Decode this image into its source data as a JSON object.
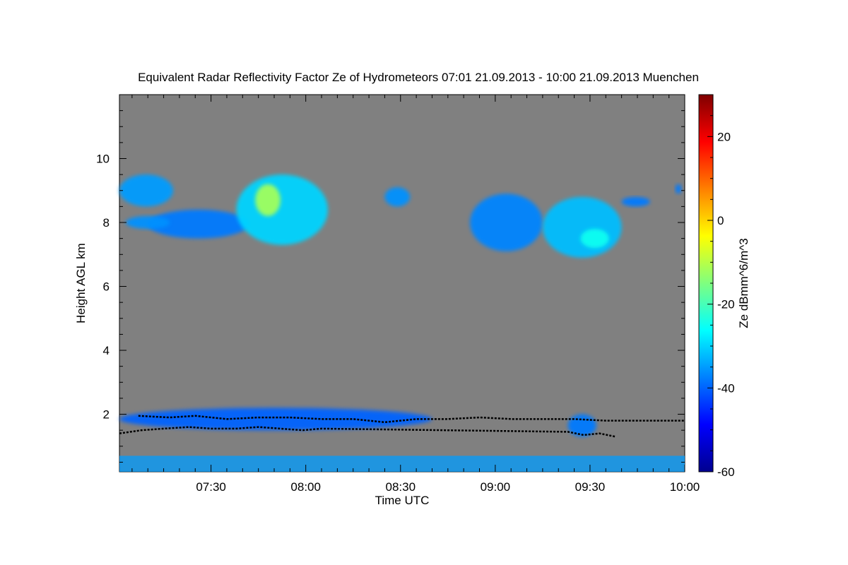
{
  "chart_data": {
    "type": "heatmap",
    "title": "Equivalent Radar Reflectivity Factor Ze of Hydrometeors   07:01 21.09.2013 - 10:00 21.09.2013 Muenchen",
    "xlabel": "Time UTC",
    "ylabel": "Height AGL km",
    "colorbar_label": "Ze dBmm^6/m^3",
    "xlim_minutes_utc": [
      421,
      600
    ],
    "ylim_km": [
      0.2,
      12.0
    ],
    "colorbar_range": [
      -60,
      30
    ],
    "x_ticks": [
      {
        "t": 450,
        "label": "07:30"
      },
      {
        "t": 480,
        "label": "08:00"
      },
      {
        "t": 510,
        "label": "08:30"
      },
      {
        "t": 540,
        "label": "09:00"
      },
      {
        "t": 570,
        "label": "09:30"
      },
      {
        "t": 600,
        "label": "10:00"
      }
    ],
    "y_ticks": [
      {
        "h": 2,
        "label": "2"
      },
      {
        "h": 4,
        "label": "4"
      },
      {
        "h": 6,
        "label": "6"
      },
      {
        "h": 8,
        "label": "8"
      },
      {
        "h": 10,
        "label": "10"
      }
    ],
    "colorbar_ticks": [
      {
        "v": -60,
        "label": "-60"
      },
      {
        "v": -40,
        "label": "-40"
      },
      {
        "v": -20,
        "label": "-20"
      },
      {
        "v": 0,
        "label": "0"
      },
      {
        "v": 20,
        "label": "20"
      }
    ],
    "background_color": "#808080",
    "colormap": "jet",
    "echo_regions": [
      {
        "name": "cirrus-west-upper",
        "t_start": 421,
        "t_end": 438,
        "h_bottom": 8.5,
        "h_top": 9.5,
        "ze": -35
      },
      {
        "name": "cirrus-west-band",
        "t_start": 430,
        "t_end": 462,
        "h_bottom": 7.5,
        "h_top": 8.4,
        "ze": -38
      },
      {
        "name": "cirrus-west-lower",
        "t_start": 423,
        "t_end": 437,
        "h_bottom": 7.8,
        "h_top": 8.2,
        "ze": -36
      },
      {
        "name": "cirrus-central-core",
        "t_start": 458,
        "t_end": 487,
        "h_bottom": 7.3,
        "h_top": 9.5,
        "ze": -30
      },
      {
        "name": "cirrus-central-peak",
        "t_start": 464,
        "t_end": 472,
        "h_bottom": 8.2,
        "h_top": 9.2,
        "ze": -12
      },
      {
        "name": "cirrus-small-1",
        "t_start": 505,
        "t_end": 513,
        "h_bottom": 8.5,
        "h_top": 9.1,
        "ze": -36
      },
      {
        "name": "cirrus-east-west",
        "t_start": 532,
        "t_end": 555,
        "h_bottom": 7.1,
        "h_top": 8.9,
        "ze": -37
      },
      {
        "name": "cirrus-east-east",
        "t_start": 555,
        "t_end": 580,
        "h_bottom": 6.9,
        "h_top": 8.8,
        "ze": -32
      },
      {
        "name": "cirrus-east-core",
        "t_start": 567,
        "t_end": 576,
        "h_bottom": 7.2,
        "h_top": 7.8,
        "ze": -25
      },
      {
        "name": "cirrus-east-tail",
        "t_start": 580,
        "t_end": 589,
        "h_bottom": 8.5,
        "h_top": 8.8,
        "ze": -38
      },
      {
        "name": "cirrus-fleck-1",
        "t_start": 597,
        "t_end": 599,
        "h_bottom": 8.9,
        "h_top": 9.2,
        "ze": -38
      },
      {
        "name": "boundary-layer-clutter",
        "t_start": 421,
        "t_end": 600,
        "h_bottom": 0.2,
        "h_top": 0.7,
        "ze": -35
      },
      {
        "name": "low-clouds-west",
        "t_start": 421,
        "t_end": 520,
        "h_bottom": 1.5,
        "h_top": 2.2,
        "ze": -40
      },
      {
        "name": "low-clouds-east",
        "t_start": 563,
        "t_end": 572,
        "h_bottom": 1.3,
        "h_top": 2.0,
        "ze": -38
      }
    ],
    "cloud_base_series": [
      {
        "name": "cloud-base-upper",
        "points": [
          [
            427,
            1.95
          ],
          [
            437,
            1.9
          ],
          [
            445,
            1.95
          ],
          [
            455,
            1.85
          ],
          [
            465,
            1.9
          ],
          [
            475,
            1.9
          ],
          [
            485,
            1.85
          ],
          [
            495,
            1.85
          ],
          [
            505,
            1.75
          ],
          [
            515,
            1.85
          ],
          [
            525,
            1.85
          ],
          [
            535,
            1.9
          ],
          [
            545,
            1.85
          ],
          [
            555,
            1.85
          ],
          [
            565,
            1.85
          ],
          [
            575,
            1.8
          ],
          [
            585,
            1.8
          ],
          [
            595,
            1.8
          ],
          [
            600,
            1.8
          ]
        ]
      },
      {
        "name": "cloud-base-lower",
        "points": [
          [
            421,
            1.4
          ],
          [
            428,
            1.5
          ],
          [
            435,
            1.55
          ],
          [
            443,
            1.6
          ],
          [
            450,
            1.55
          ],
          [
            458,
            1.55
          ],
          [
            465,
            1.6
          ],
          [
            472,
            1.55
          ],
          [
            479,
            1.5
          ],
          [
            485,
            1.55
          ],
          [
            563,
            1.45
          ],
          [
            568,
            1.35
          ],
          [
            573,
            1.4
          ],
          [
            578,
            1.3
          ]
        ]
      }
    ]
  }
}
